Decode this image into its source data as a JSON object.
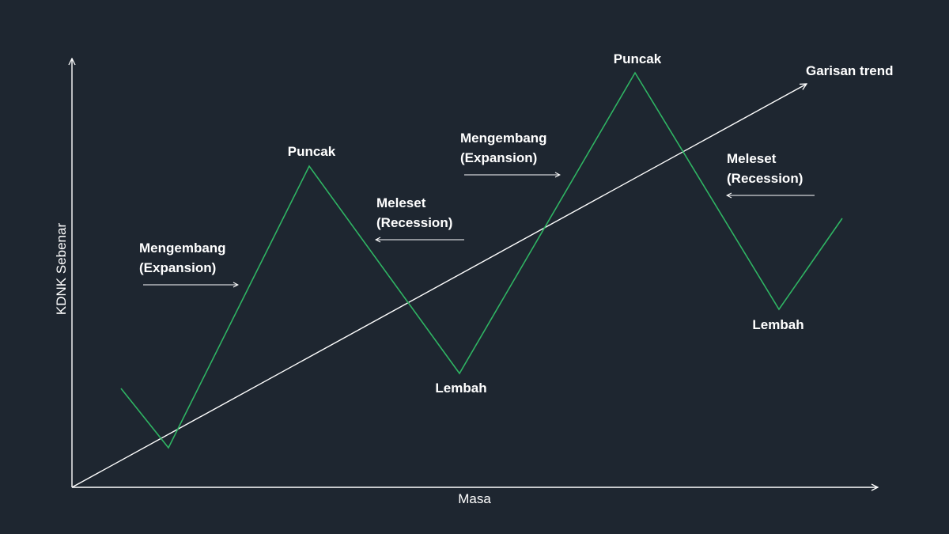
{
  "colors": {
    "background": "#1e2630",
    "cycle_line": "#2fb463",
    "axes": "#ffffff",
    "text": "#ffffff"
  },
  "axes": {
    "y_label": "KDNK Sebenar",
    "x_label": "Masa"
  },
  "trend": {
    "label": "Garisan trend"
  },
  "labels": {
    "peak_1": "Puncak",
    "peak_2": "Puncak",
    "trough_1": "Lembah",
    "trough_2": "Lembah",
    "expansion_1": {
      "line1": "Mengembang",
      "line2": "(Expansion)"
    },
    "expansion_2": {
      "line1": "Mengembang",
      "line2": "(Expansion)"
    },
    "recession_1": {
      "line1": "Meleset",
      "line2": "(Recession)"
    },
    "recession_2": {
      "line1": "Meleset",
      "line2": "(Recession)"
    }
  }
}
